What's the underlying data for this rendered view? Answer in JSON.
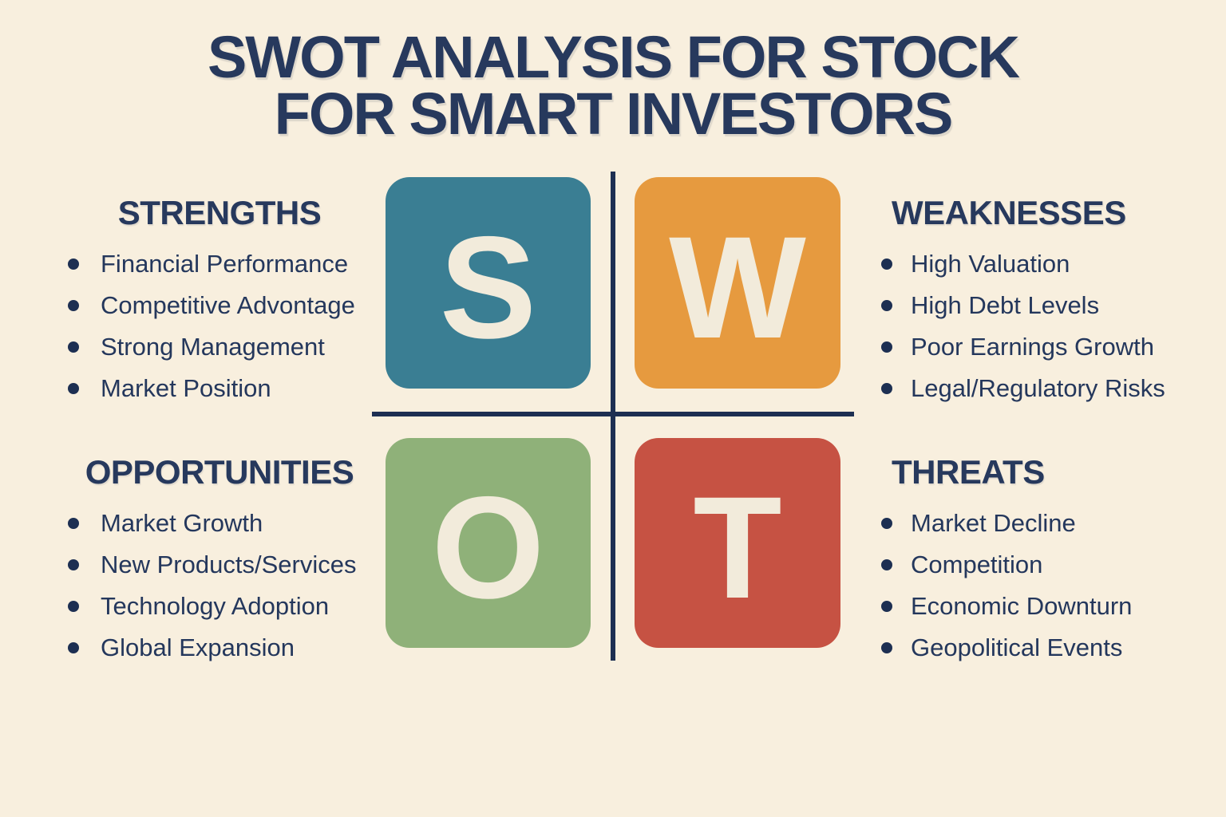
{
  "page": {
    "title_line1": "SWOT ANALYSIS FOR STOCK",
    "title_line2": "FOR SMART INVESTORS"
  },
  "colors": {
    "background": "#F8EFDE",
    "title_navy": "#27395D",
    "text_navy": "#24375C",
    "line_navy": "#1D2F52",
    "tile_letter_cream": "#F2EBDB",
    "strengths_teal": "#3A7E93",
    "weaknesses_orange": "#E69A3F",
    "opportunities_green": "#8FB179",
    "threats_red": "#C65243"
  },
  "quadrants": {
    "strengths": {
      "letter": "S",
      "heading": "STRENGTHS",
      "color": "#3A7E93",
      "items": [
        "Financial Performance",
        "Competitive Advontage",
        "Strong Management",
        "Market Position"
      ]
    },
    "weaknesses": {
      "letter": "W",
      "heading": "WEAKNESSES",
      "color": "#E69A3F",
      "items": [
        "High Valuation",
        "High Debt Levels",
        "Poor Earnings Growth",
        "Legal/Regulatory Risks"
      ]
    },
    "opportunities": {
      "letter": "O",
      "heading": "OPPORTUNITIES",
      "color": "#8FB179",
      "items": [
        "Market Growth",
        "New Products/Services",
        "Technology Adoption",
        "Global Expansion"
      ]
    },
    "threats": {
      "letter": "T",
      "heading": "THREATS",
      "color": "#C65243",
      "items": [
        "Market Decline",
        "Competition",
        "Economic Downturn",
        "Geopolitical Events"
      ]
    }
  }
}
